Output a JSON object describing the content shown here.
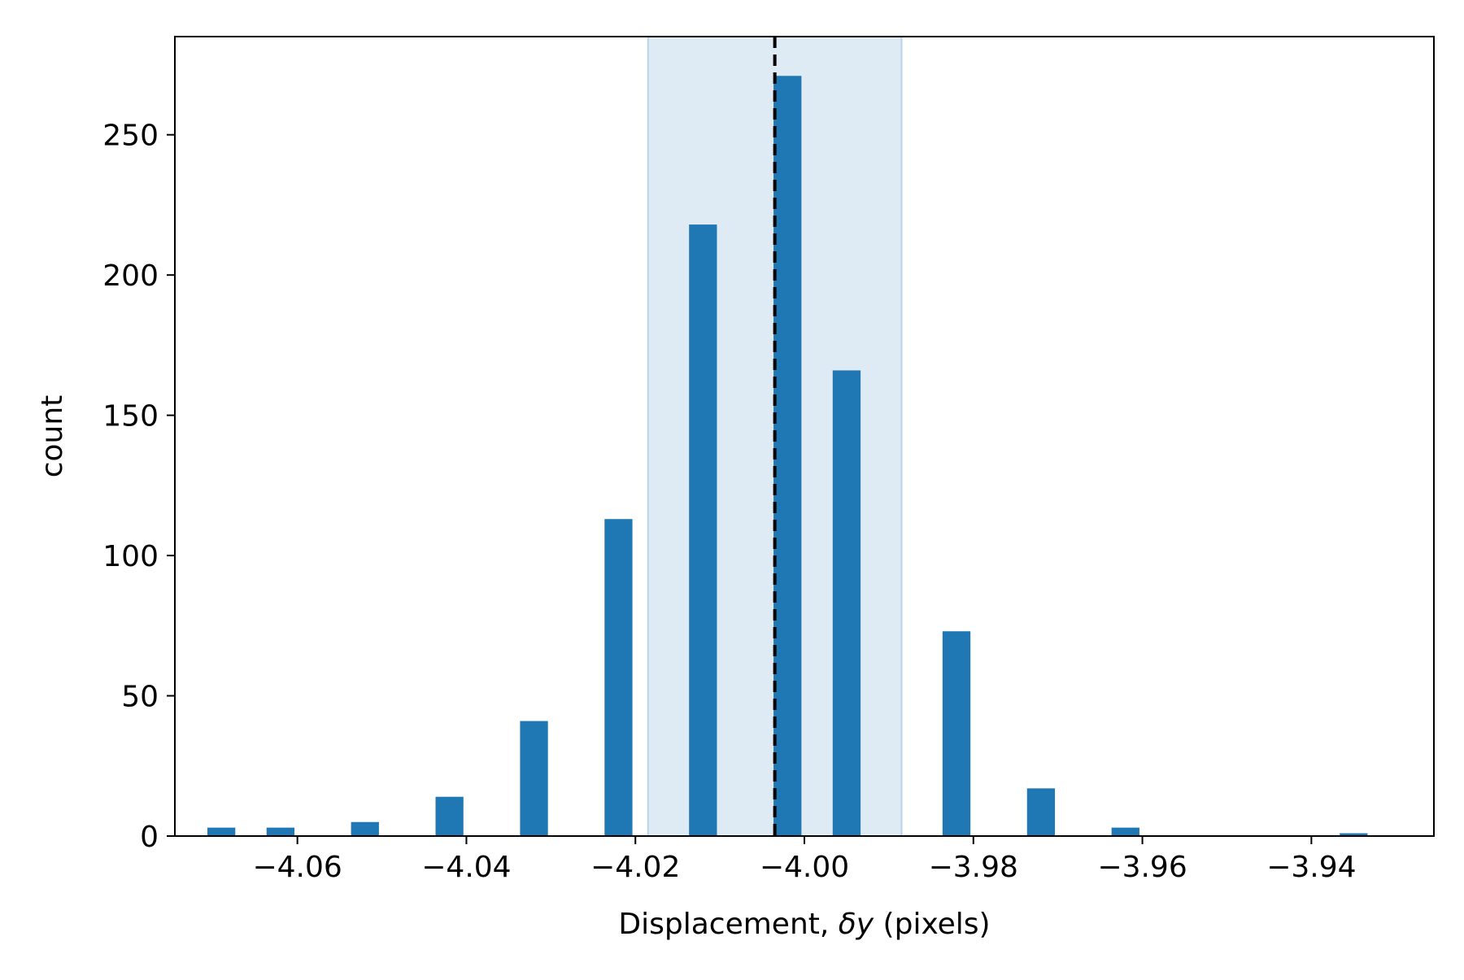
{
  "chart_data": {
    "type": "bar",
    "title": "",
    "xlabel_prefix": "Displacement, ",
    "xlabel_var": "δy",
    "xlabel_suffix": " (pixels)",
    "ylabel": "count",
    "xlim": [
      -4.0745,
      -3.9255
    ],
    "ylim": [
      0,
      285
    ],
    "xticks": [
      -4.06,
      -4.04,
      -4.02,
      -4.0,
      -3.98,
      -3.96,
      -3.94
    ],
    "xtick_labels": [
      "−4.06",
      "−4.04",
      "−4.02",
      "−4.00",
      "−3.98",
      "−3.96",
      "−3.94"
    ],
    "yticks": [
      0,
      50,
      100,
      150,
      200,
      250
    ],
    "ytick_labels": [
      "0",
      "50",
      "100",
      "150",
      "200",
      "250"
    ],
    "bar_width": 0.0033,
    "bins": [
      {
        "x": -4.069,
        "count": 3
      },
      {
        "x": -4.062,
        "count": 3
      },
      {
        "x": -4.052,
        "count": 5
      },
      {
        "x": -4.042,
        "count": 14
      },
      {
        "x": -4.032,
        "count": 41
      },
      {
        "x": -4.022,
        "count": 113
      },
      {
        "x": -4.012,
        "count": 218
      },
      {
        "x": -4.002,
        "count": 271
      },
      {
        "x": -3.995,
        "count": 166
      },
      {
        "x": -3.982,
        "count": 73
      },
      {
        "x": -3.972,
        "count": 17
      },
      {
        "x": -3.962,
        "count": 3
      },
      {
        "x": -3.935,
        "count": 1
      }
    ],
    "mean_line_x": -4.0035,
    "shaded_band": [
      -4.0185,
      -3.9885
    ],
    "grid": false,
    "colors": {
      "bar": "#1f77b4",
      "band_fill": "#deeaf4",
      "band_edge": "#b9d3ea",
      "mean_line": "#000000"
    }
  }
}
